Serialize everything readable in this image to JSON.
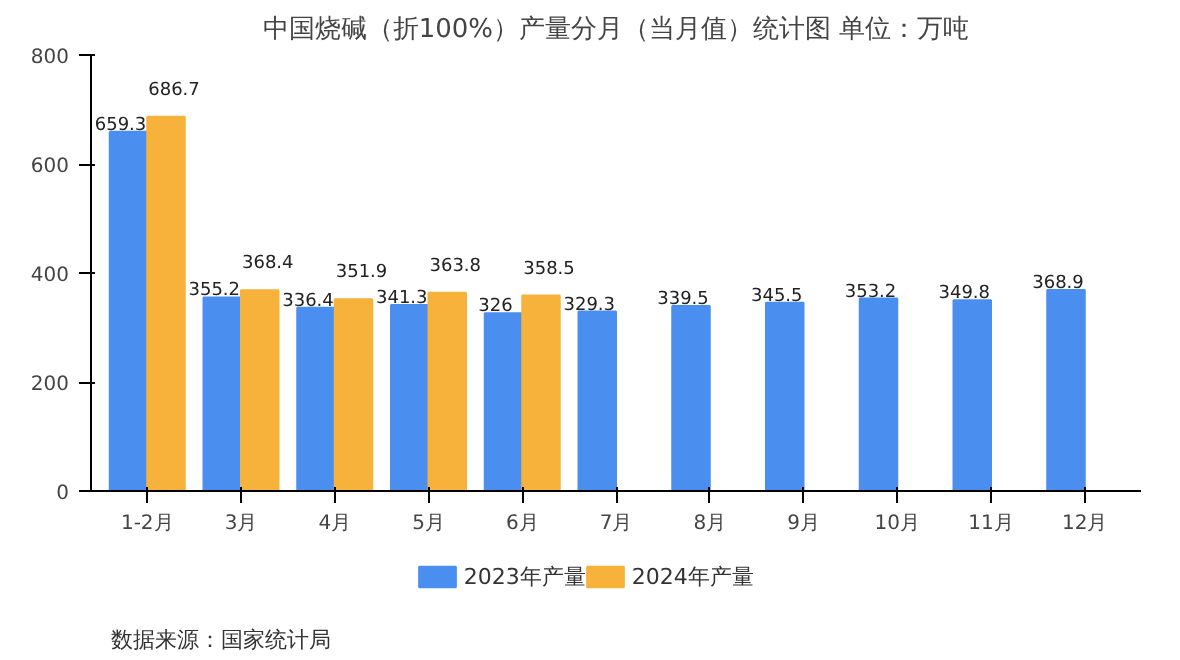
{
  "chart_data": {
    "type": "bar",
    "title": "中国烧碱（折100%）产量分月（当月值）统计图 单位：万吨",
    "categories": [
      "1-2月",
      "3月",
      "4月",
      "5月",
      "6月",
      "7月",
      "8月",
      "9月",
      "10月",
      "11月",
      "12月"
    ],
    "series": [
      {
        "name": "2023年产量",
        "color": "#4a8ef0",
        "values": [
          659.3,
          355.2,
          336.4,
          341.3,
          326,
          329.3,
          339.5,
          345.5,
          353.2,
          349.8,
          368.9
        ]
      },
      {
        "name": "2024年产量",
        "color": "#f7b23b",
        "values": [
          686.7,
          368.4,
          351.9,
          363.8,
          358.5,
          null,
          null,
          null,
          null,
          null,
          null
        ]
      }
    ],
    "ylim": [
      0,
      800
    ],
    "yticks": [
      0,
      200,
      400,
      600,
      800
    ],
    "grid": false,
    "legend": "bottom",
    "data_labels": true,
    "annotations": [
      "数据来源：国家统计局"
    ]
  }
}
